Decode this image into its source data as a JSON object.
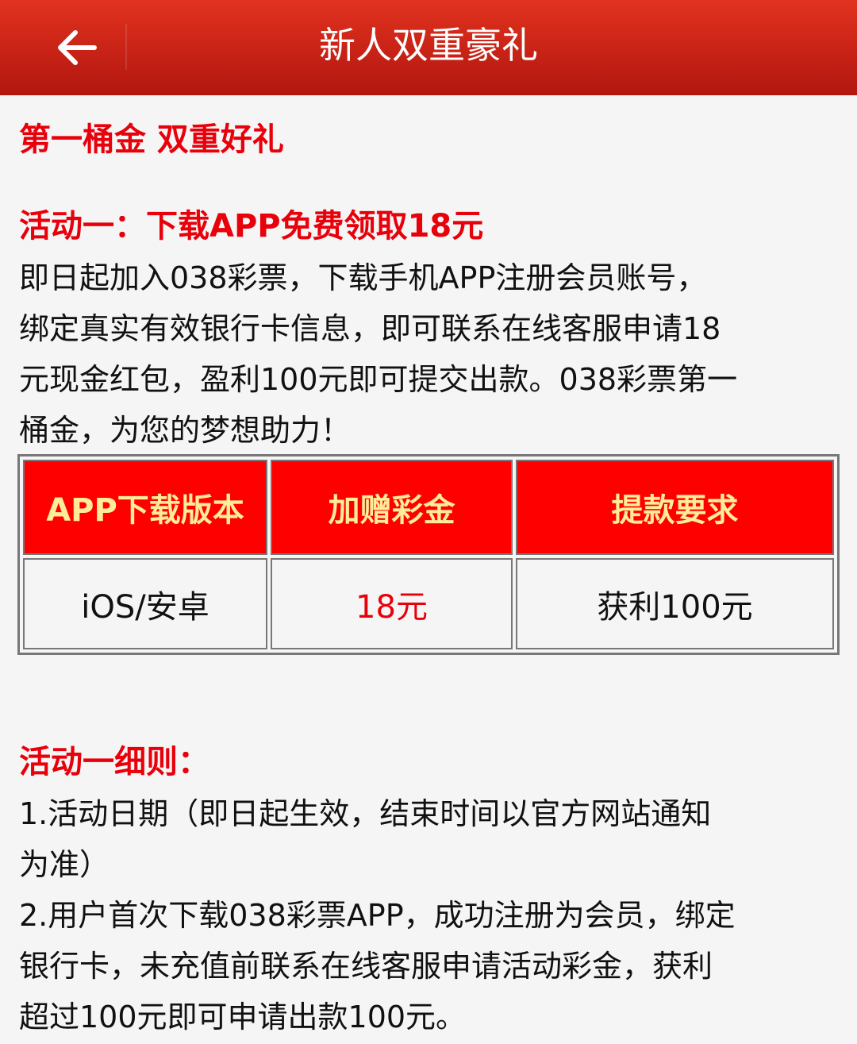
{
  "header": {
    "title": "新人双重豪礼",
    "back_icon": "arrow-left-icon"
  },
  "content": {
    "heading": "第一桶金 双重好礼",
    "activity_title": "活动一：下载APP免费领取18元",
    "activity_lines": [
      "即日起加入038彩票，下载手机APP注册会员账号，",
      "绑定真实有效银行卡信息，即可联系在线客服申请18",
      "元现金红包，盈利100元即可提交出款。038彩票第一",
      "桶金，为您的梦想助力！"
    ],
    "table": {
      "headers": [
        "APP下载版本",
        "加赠彩金",
        "提款要求"
      ],
      "row": [
        "iOS/安卓",
        "18元",
        "获利100元"
      ]
    },
    "rules_title": "活动一细则：",
    "rules_lines": [
      "1.活动日期（即日起生效，结束时间以官方网站通知",
      "为准）",
      "2.用户首次下载038彩票APP，成功注册为会员，绑定",
      "银行卡，未充值前联系在线客服申请活动彩金，获利",
      "超过100元即可申请出款100元。"
    ]
  },
  "colors": {
    "header": "#d02818",
    "accent": "#e8000b",
    "table_header": "#ff0000",
    "table_header_text": "#ffec98"
  }
}
